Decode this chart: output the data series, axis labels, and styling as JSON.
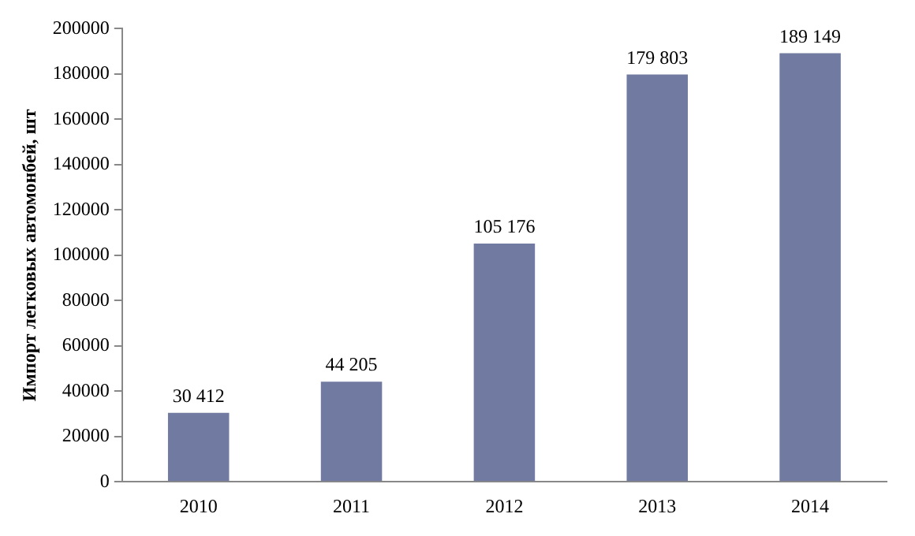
{
  "chart_data": {
    "type": "bar",
    "ylabel": "Импорт легковых автомонбей, шт",
    "categories": [
      "2010",
      "2011",
      "2012",
      "2013",
      "2014"
    ],
    "values": [
      30412,
      44205,
      105176,
      179803,
      189149
    ],
    "value_labels": [
      "30 412",
      "44 205",
      "105 176",
      "179 803",
      "189 149"
    ],
    "color": "#717aa0",
    "ylim": [
      0,
      200000
    ],
    "yticks": [
      0,
      20000,
      40000,
      60000,
      80000,
      100000,
      120000,
      140000,
      160000,
      180000,
      200000
    ],
    "grid": false,
    "legend": false
  }
}
